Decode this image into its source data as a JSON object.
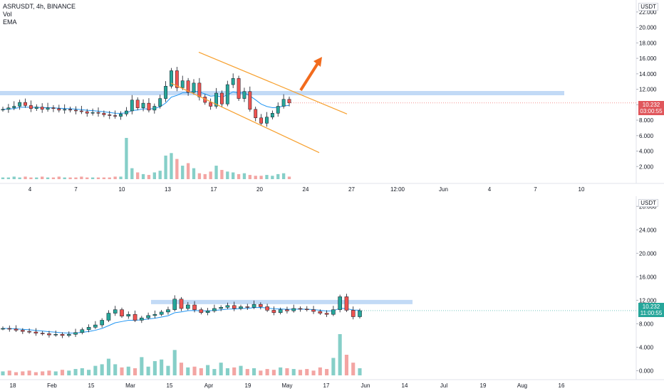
{
  "legend": {
    "symbol": "ASRUSDT, 4h, BINANCE",
    "vol": "Vol",
    "ema": "EMA"
  },
  "colors": {
    "up": "#26a69a",
    "down": "#ef5350",
    "ema": "#2196f3",
    "zone": "#b7d3f5",
    "channel": "#f7a02e",
    "arrow": "#f26b1d",
    "vol_up": "#86cfc8",
    "vol_down": "#f3a5a3"
  },
  "chart_data": [
    {
      "type": "candlestick",
      "title": "ASRUSDT, 4h, BINANCE",
      "currency": "USDT",
      "y_ticks": [
        "2.000",
        "4.000",
        "6.000",
        "8.000",
        "10.000",
        "12.000",
        "14.000",
        "16.000",
        "18.000",
        "20.000",
        "22.000"
      ],
      "ylim": [
        0,
        23
      ],
      "x_ticks": [
        "4",
        "7",
        "10",
        "13",
        "17",
        "20",
        "24",
        "27",
        "12:00",
        "Jun",
        "4",
        "7",
        "10"
      ],
      "last_price": "10.232",
      "countdown": "03:00:55",
      "horizontal_zone": 11.5,
      "descending_channel": {
        "upper": [
          [
            0,
            16.8
          ],
          [
            1,
            8.8
          ]
        ],
        "lower": [
          [
            0,
            12.8
          ],
          [
            1,
            3.8
          ]
        ]
      },
      "close_series": [
        9.4,
        9.6,
        9.8,
        10.3,
        9.9,
        9.5,
        9.7,
        9.4,
        9.6,
        9.5,
        9.3,
        9.4,
        9.3,
        9.2,
        9.1,
        8.9,
        9.0,
        8.9,
        8.7,
        8.6,
        8.5,
        8.8,
        9.2,
        10.6,
        9.6,
        10.2,
        9.3,
        9.8,
        10.8,
        12.4,
        14.4,
        12.2,
        13.1,
        11.6,
        12.8,
        11.0,
        10.3,
        9.8,
        11.5,
        10.1,
        12.6,
        13.4,
        10.8,
        11.7,
        9.4,
        8.3,
        7.6,
        8.4,
        8.9,
        9.8,
        10.7,
        10.232
      ],
      "volume_series": [
        0.2,
        0.2,
        0.3,
        0.2,
        0.3,
        0.2,
        0.2,
        0.3,
        0.2,
        0.2,
        0.3,
        0.2,
        0.2,
        0.2,
        0.3,
        0.2,
        0.2,
        0.2,
        0.2,
        0.2,
        0.3,
        0.3,
        4.9,
        1.3,
        0.8,
        0.6,
        0.5,
        0.8,
        1.0,
        2.8,
        3.1,
        2.4,
        1.6,
        1.9,
        1.3,
        0.7,
        0.6,
        0.9,
        1.6,
        1.1,
        0.9,
        0.8,
        0.6,
        0.7,
        0.5,
        0.4,
        0.4,
        0.5,
        0.4,
        0.6,
        0.7,
        0.3
      ]
    },
    {
      "type": "candlestick",
      "currency": "USDT",
      "y_ticks": [
        "0.000",
        "4.000",
        "8.000",
        "12.000",
        "16.000",
        "20.000",
        "24.000",
        "28.000"
      ],
      "ylim": [
        -2,
        29
      ],
      "x_ticks": [
        "18",
        "Feb",
        "15",
        "Mar",
        "15",
        "Apr",
        "19",
        "May",
        "17",
        "Jun",
        "14",
        "Jul",
        "19",
        "Aug",
        "16"
      ],
      "last_price": "10.232",
      "countdown": "11:00:55",
      "horizontal_zone": 11.7,
      "close_series": [
        7.2,
        7.1,
        6.9,
        6.7,
        6.6,
        6.4,
        6.3,
        6.1,
        6.2,
        6.0,
        6.2,
        6.5,
        7.0,
        7.4,
        7.8,
        8.6,
        9.8,
        10.4,
        9.3,
        9.6,
        8.6,
        9.0,
        9.4,
        9.6,
        10.0,
        10.4,
        12.2,
        10.6,
        11.2,
        10.4,
        9.9,
        10.2,
        10.6,
        10.8,
        11.1,
        10.6,
        10.9,
        10.8,
        11.3,
        10.9,
        10.3,
        9.9,
        10.4,
        10.2,
        10.6,
        10.5,
        10.4,
        10.1,
        9.8,
        9.6,
        10.4,
        12.6,
        10.3,
        9.2,
        10.232
      ],
      "volume_series": [
        0.5,
        0.6,
        0.4,
        0.5,
        0.6,
        0.4,
        0.5,
        0.6,
        0.5,
        0.7,
        0.6,
        0.8,
        0.9,
        0.7,
        1.2,
        1.4,
        2.1,
        1.4,
        1.0,
        1.1,
        0.9,
        2.3,
        1.1,
        1.8,
        2.0,
        1.2,
        3.2,
        1.6,
        1.0,
        1.1,
        0.9,
        1.3,
        0.8,
        1.6,
        0.9,
        1.0,
        1.2,
        0.8,
        0.9,
        0.6,
        0.8,
        0.7,
        1.0,
        0.9,
        0.8,
        0.7,
        0.8,
        0.6,
        1.0,
        0.8,
        2.2,
        5.2,
        2.6,
        1.6,
        0.9
      ]
    }
  ]
}
